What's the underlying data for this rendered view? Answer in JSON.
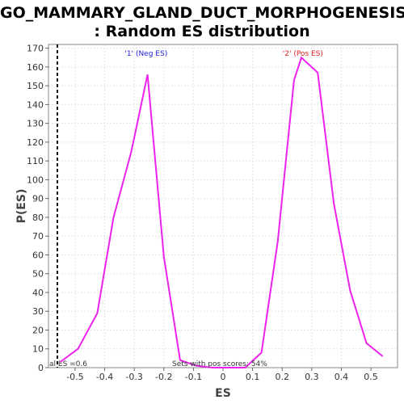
{
  "title_line1": "GO_MAMMARY_GLAND_DUCT_MORPHOGENESIS",
  "title_line2": ": Random ES distribution",
  "chart_data": {
    "type": "line",
    "xlabel": "ES",
    "ylabel": "P(ES)",
    "xlim": [
      -0.59,
      0.59
    ],
    "ylim": [
      0,
      172
    ],
    "xticks": [
      -0.5,
      -0.4,
      -0.3,
      -0.2,
      -0.1,
      0.0,
      0.1,
      0.2,
      0.3,
      0.4,
      0.5
    ],
    "xtick_labels": [
      "-0.5",
      "-0.4",
      "-0.3",
      "-0.2",
      "-0.1",
      "0",
      "0.1",
      "0.2",
      "0.3",
      "0.4",
      "0.5"
    ],
    "yticks": [
      0,
      10,
      20,
      30,
      40,
      50,
      60,
      70,
      80,
      90,
      100,
      110,
      120,
      130,
      140,
      150,
      160,
      170
    ],
    "grid": true,
    "line_color": "#ee22ee",
    "series": [
      {
        "x": [
          -0.55,
          -0.49,
          -0.425,
          -0.37,
          -0.31,
          -0.255,
          -0.2,
          -0.145,
          -0.09,
          -0.035,
          0.02,
          0.075,
          0.13,
          0.185,
          0.24,
          0.265,
          0.32,
          0.375,
          0.43,
          0.485,
          0.54
        ],
        "values": [
          3,
          10,
          29,
          80,
          115,
          156,
          59,
          4,
          1,
          0,
          0,
          0,
          8,
          67,
          153,
          165,
          157,
          87,
          41,
          13,
          6
        ]
      }
    ],
    "vline": {
      "x": -0.56,
      "label": "al ES =0.6",
      "style": "dashed"
    },
    "annotations": [
      {
        "text": "'1' (Neg ES)",
        "x": -0.26,
        "color": "#2222dd"
      },
      {
        "text": "'2' (Pos ES)",
        "x": 0.27,
        "color": "#dd2222"
      }
    ],
    "footer": "Sets with pos scores: 54%"
  }
}
